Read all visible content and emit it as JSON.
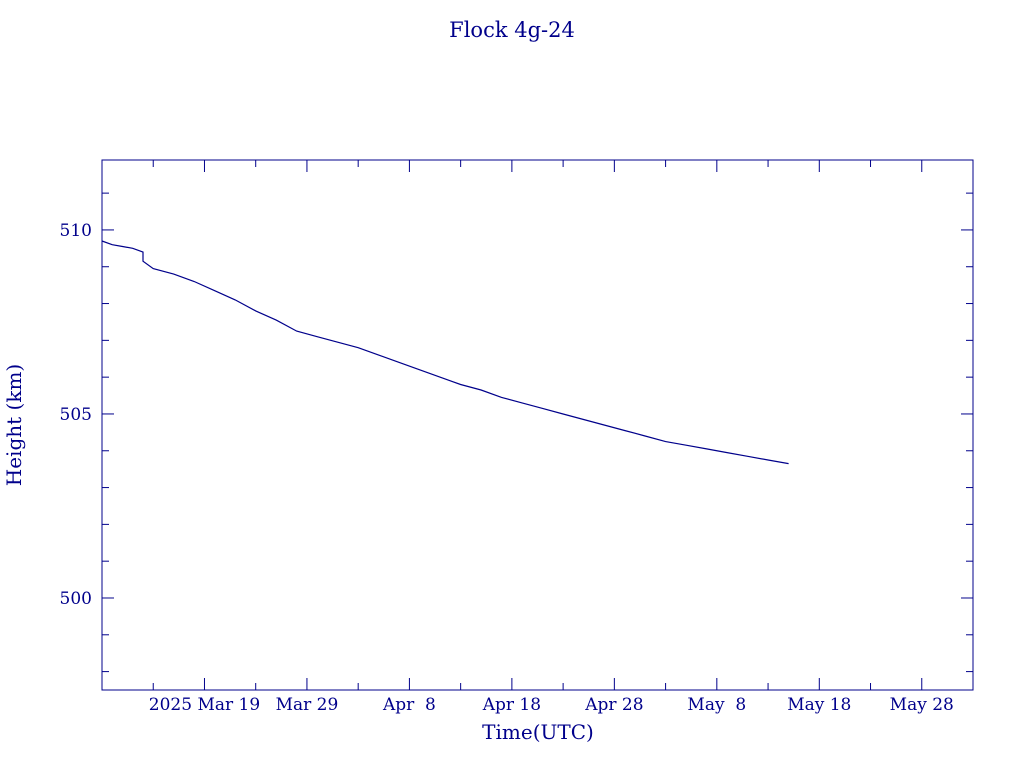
{
  "chart_data": {
    "type": "line",
    "title": "Flock 4g-24",
    "xlabel": "Time(UTC)",
    "ylabel": "Height (km)",
    "x_tick_labels": [
      "2025 Mar 19",
      "Mar 29",
      "Apr  8",
      "Apr 18",
      "Apr 28",
      "May  8",
      "May 18",
      "May 28"
    ],
    "x_tick_dates": [
      "2025-03-19",
      "2025-03-29",
      "2025-04-08",
      "2025-04-18",
      "2025-04-28",
      "2025-05-08",
      "2025-05-18",
      "2025-05-28"
    ],
    "y_tick_labels": [
      "500",
      "505",
      "510"
    ],
    "y_tick_values": [
      500,
      505,
      510
    ],
    "xlim": [
      "2025-03-09",
      "2025-06-02"
    ],
    "ylim": [
      497.5,
      511.9
    ],
    "grid": false,
    "color": "#00008b",
    "series": [
      {
        "x": [
          "2025-03-09",
          "2025-03-10",
          "2025-03-11",
          "2025-03-12",
          "2025-03-13",
          "2025-03-13",
          "2025-03-14",
          "2025-03-16",
          "2025-03-18",
          "2025-03-20",
          "2025-03-22",
          "2025-03-24",
          "2025-03-26",
          "2025-03-28",
          "2025-03-30",
          "2025-04-01",
          "2025-04-03",
          "2025-04-05",
          "2025-04-07",
          "2025-04-09",
          "2025-04-11",
          "2025-04-13",
          "2025-04-15",
          "2025-04-17",
          "2025-04-19",
          "2025-04-21",
          "2025-04-23",
          "2025-04-25",
          "2025-04-27",
          "2025-04-29",
          "2025-05-01",
          "2025-05-03",
          "2025-05-05",
          "2025-05-07",
          "2025-05-09",
          "2025-05-11",
          "2025-05-13",
          "2025-05-15"
        ],
        "y": [
          509.7,
          509.6,
          509.55,
          509.5,
          509.4,
          509.15,
          508.95,
          508.8,
          508.6,
          508.35,
          508.1,
          507.8,
          507.55,
          507.25,
          507.1,
          506.95,
          506.8,
          506.6,
          506.4,
          506.2,
          506.0,
          505.8,
          505.65,
          505.45,
          505.3,
          505.15,
          505.0,
          504.85,
          504.7,
          504.55,
          504.4,
          504.25,
          504.15,
          504.05,
          503.95,
          503.85,
          503.75,
          503.65
        ]
      }
    ]
  }
}
